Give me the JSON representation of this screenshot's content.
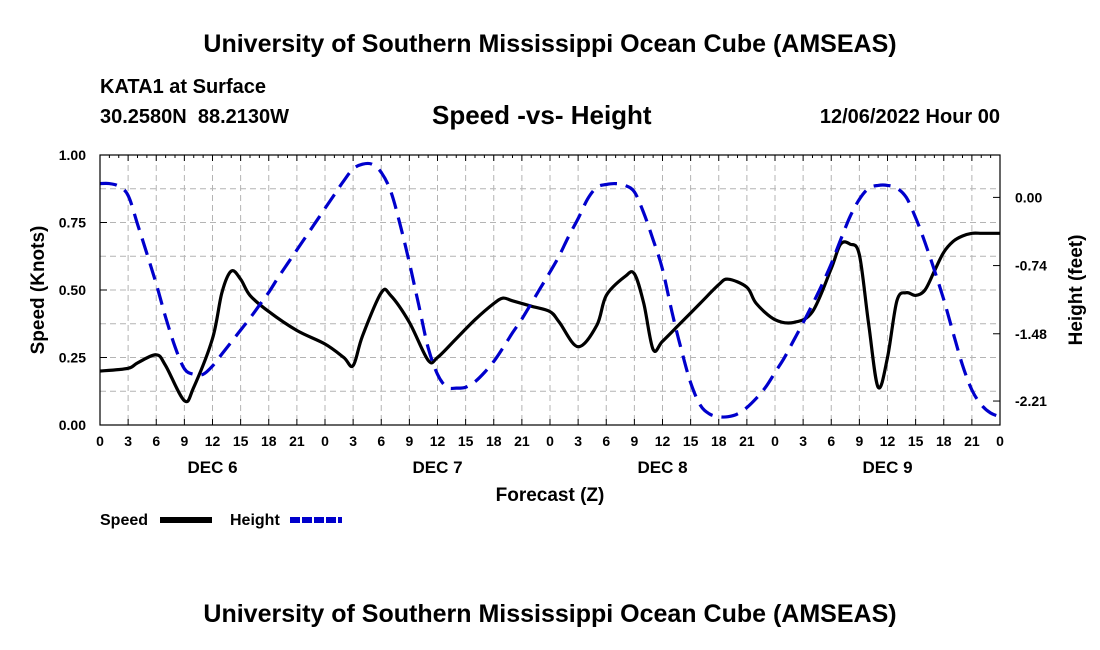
{
  "header": {
    "title": "University of Southern Mississippi Ocean Cube (AMSEAS)",
    "station": "KATA1 at Surface",
    "coords": "30.2580N  88.2130W",
    "subtitle": "Speed -vs- Height",
    "date": "12/06/2022 Hour 00"
  },
  "footer": {
    "title": "University of Southern Mississippi Ocean Cube (AMSEAS)"
  },
  "colors": {
    "speed": "#000000",
    "height": "#0000cc",
    "grid": "#b4b4b4"
  },
  "chart_data": {
    "type": "line",
    "xlabel": "Forecast (Z)",
    "ylabel": "Speed (Knots)",
    "y2label": "Height (feet)",
    "grid": true,
    "xlim": [
      0,
      96
    ],
    "ylim": [
      0,
      1
    ],
    "y2lim": [
      -2.47,
      0.46
    ],
    "x_ticks": [
      0,
      3,
      6,
      9,
      12,
      15,
      18,
      21,
      24,
      27,
      30,
      33,
      36,
      39,
      42,
      45,
      48,
      51,
      54,
      57,
      60,
      63,
      66,
      69,
      72,
      75,
      78,
      81,
      84,
      87,
      90,
      93,
      96
    ],
    "x_tick_labels": [
      "0",
      "3",
      "6",
      "9",
      "12",
      "15",
      "18",
      "21",
      "0",
      "3",
      "6",
      "9",
      "12",
      "15",
      "18",
      "21",
      "0",
      "3",
      "6",
      "9",
      "12",
      "15",
      "18",
      "21",
      "0",
      "3",
      "6",
      "9",
      "12",
      "15",
      "18",
      "21",
      "0"
    ],
    "day_labels": [
      {
        "label": "DEC 6",
        "x": 12
      },
      {
        "label": "DEC 7",
        "x": 36
      },
      {
        "label": "DEC 8",
        "x": 60
      },
      {
        "label": "DEC 9",
        "x": 84
      }
    ],
    "y_ticks": [
      0,
      0.25,
      0.5,
      0.75,
      1.0
    ],
    "y_tick_labels": [
      "0.00",
      "0.25",
      "0.50",
      "0.75",
      "1.00"
    ],
    "y2_ticks": [
      0,
      -0.74,
      -1.48,
      -2.21
    ],
    "y2_tick_labels": [
      "0.00",
      "-0.74",
      "-1.48",
      "-2.21"
    ],
    "legend": [
      {
        "label": "Speed",
        "series": "Speed"
      },
      {
        "label": "Height",
        "series": "Height"
      }
    ],
    "series": [
      {
        "name": "Speed",
        "axis": "left",
        "style": "solid",
        "x": [
          0,
          3,
          4,
          6,
          7,
          9,
          10,
          12,
          13,
          14,
          15,
          16,
          18,
          21,
          24,
          26,
          27,
          28,
          30,
          31,
          33,
          35,
          36,
          38,
          40,
          42,
          43,
          44,
          46,
          48,
          49,
          51,
          53,
          54,
          56,
          57,
          58,
          59,
          60,
          62,
          64,
          66,
          67,
          69,
          70,
          72,
          74,
          76,
          78,
          79,
          80,
          81,
          82,
          83,
          84,
          85,
          86,
          87,
          88,
          89,
          90,
          91,
          92,
          93,
          94,
          95,
          96
        ],
        "y": [
          0.2,
          0.21,
          0.23,
          0.26,
          0.22,
          0.09,
          0.14,
          0.32,
          0.49,
          0.57,
          0.54,
          0.48,
          0.42,
          0.35,
          0.3,
          0.25,
          0.22,
          0.33,
          0.49,
          0.48,
          0.38,
          0.24,
          0.25,
          0.32,
          0.39,
          0.45,
          0.47,
          0.46,
          0.44,
          0.42,
          0.38,
          0.29,
          0.37,
          0.48,
          0.55,
          0.56,
          0.45,
          0.28,
          0.31,
          0.38,
          0.45,
          0.52,
          0.54,
          0.51,
          0.45,
          0.39,
          0.38,
          0.42,
          0.58,
          0.67,
          0.67,
          0.63,
          0.37,
          0.14,
          0.25,
          0.46,
          0.49,
          0.48,
          0.5,
          0.57,
          0.64,
          0.68,
          0.7,
          0.71,
          0.71,
          0.71,
          0.71
        ]
      },
      {
        "name": "Height",
        "axis": "right",
        "style": "dashed",
        "x": [
          0,
          1,
          2,
          3,
          4,
          5,
          6,
          7,
          8,
          9,
          10,
          11,
          12,
          13,
          14,
          15,
          16,
          17,
          18,
          19,
          20,
          21,
          22,
          23,
          24,
          25,
          26,
          27,
          28,
          29,
          30,
          31,
          32,
          33,
          34,
          35,
          36,
          37,
          38,
          39,
          40,
          41,
          42,
          43,
          44,
          45,
          46,
          47,
          48,
          49,
          50,
          51,
          52,
          53,
          54,
          55,
          56,
          57,
          58,
          59,
          60,
          61,
          62,
          63,
          64,
          65,
          66,
          67,
          68,
          69,
          70,
          71,
          72,
          73,
          74,
          75,
          76,
          77,
          78,
          79,
          80,
          81,
          82,
          83,
          84,
          85,
          86,
          87,
          88,
          89,
          90,
          91,
          92,
          93,
          94,
          95,
          96
        ],
        "y": [
          0.15,
          0.15,
          0.12,
          0.02,
          -0.29,
          -0.61,
          -0.94,
          -1.3,
          -1.62,
          -1.86,
          -1.92,
          -1.92,
          -1.83,
          -1.7,
          -1.57,
          -1.44,
          -1.31,
          -1.17,
          -1.03,
          -0.87,
          -0.72,
          -0.57,
          -0.42,
          -0.27,
          -0.12,
          0.03,
          0.18,
          0.31,
          0.36,
          0.36,
          0.27,
          0.07,
          -0.29,
          -0.71,
          -1.17,
          -1.63,
          -1.92,
          -2.06,
          -2.07,
          -2.06,
          -2.0,
          -1.9,
          -1.78,
          -1.63,
          -1.47,
          -1.32,
          -1.15,
          -0.98,
          -0.81,
          -0.63,
          -0.42,
          -0.23,
          -0.02,
          0.11,
          0.14,
          0.15,
          0.13,
          0.06,
          -0.17,
          -0.46,
          -0.78,
          -1.24,
          -1.65,
          -2.01,
          -2.25,
          -2.35,
          -2.38,
          -2.38,
          -2.35,
          -2.28,
          -2.18,
          -2.06,
          -1.9,
          -1.74,
          -1.55,
          -1.36,
          -1.16,
          -0.95,
          -0.72,
          -0.46,
          -0.21,
          -0.02,
          0.1,
          0.13,
          0.13,
          0.1,
          0.0,
          -0.22,
          -0.49,
          -0.79,
          -1.11,
          -1.47,
          -1.82,
          -2.09,
          -2.25,
          -2.34,
          -2.38
        ]
      }
    ]
  }
}
